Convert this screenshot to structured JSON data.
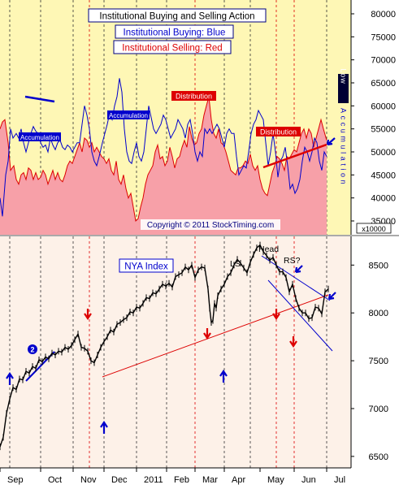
{
  "chart_data": [
    {
      "type": "area",
      "panel": "upper",
      "title_lines": [
        {
          "text": "Institutional Buying and Selling Action",
          "color": "#000000"
        },
        {
          "text": "Institutional Buying: Blue",
          "color": "#0000cc"
        },
        {
          "text": "Institutional Selling: Red",
          "color": "#dd0000"
        }
      ],
      "ylim": [
        32000,
        83000
      ],
      "yticks": [
        35000,
        40000,
        45000,
        50000,
        55000,
        60000,
        65000,
        70000,
        75000,
        80000
      ],
      "ytick_labels": [
        "35000",
        "40000",
        "45000",
        "50000",
        "55000",
        "60000",
        "65000",
        "70000",
        "75000",
        "80000"
      ],
      "multiplier_label": "x10000",
      "series": [
        {
          "name": "Institutional Buying",
          "color": "#0000cc",
          "x": [
            0,
            3,
            7,
            10,
            13,
            16,
            20,
            23,
            26,
            29,
            32,
            35,
            38,
            41,
            44,
            47,
            50,
            53,
            56,
            59,
            62,
            65,
            68,
            71,
            74,
            77,
            80,
            83,
            86,
            89,
            92,
            95,
            98,
            101,
            104,
            107,
            110,
            113,
            116,
            119,
            122,
            126,
            129,
            132,
            135,
            138,
            141,
            144,
            147,
            150,
            153,
            156,
            159,
            162,
            165,
            168,
            171,
            174,
            177,
            180,
            183,
            186,
            189,
            192,
            195,
            198,
            201,
            204,
            207,
            210,
            213,
            216,
            219,
            222,
            225,
            228,
            231,
            234,
            237,
            240,
            243,
            246,
            249,
            252,
            255,
            258,
            261,
            264,
            267,
            270,
            273,
            276,
            279,
            282,
            285,
            288,
            291,
            294,
            297,
            300,
            303,
            306,
            309,
            312,
            315,
            318,
            321,
            324,
            327,
            330,
            333,
            336,
            339,
            342,
            345,
            348,
            351,
            354,
            357,
            360,
            363,
            366,
            369,
            372,
            375,
            378,
            381,
            384,
            387,
            390,
            393,
            396,
            399,
            402
          ],
          "values": [
            40000,
            36000,
            45000,
            48000,
            55000,
            53000,
            54000,
            53000,
            55000,
            52000,
            50000,
            52000,
            54000,
            55500,
            54500,
            54000,
            52000,
            51000,
            51500,
            50000,
            53000,
            51500,
            50500,
            52000,
            52500,
            51000,
            50500,
            51500,
            51000,
            50000,
            51000,
            52000,
            52000,
            56000,
            60000,
            58000,
            55000,
            50000,
            48000,
            47000,
            49000,
            52000,
            54000,
            56000,
            58500,
            57000,
            60000,
            62000,
            66000,
            63000,
            55000,
            50000,
            48000,
            47500,
            50000,
            52000,
            49000,
            48000,
            50000,
            55000,
            60000,
            57500,
            55000,
            54000,
            55000,
            56000,
            58000,
            57000,
            55000,
            53000,
            54000,
            55000,
            57000,
            56000,
            55000,
            53000,
            56000,
            57000,
            54000,
            50000,
            48000,
            50000,
            49000,
            55000,
            54000,
            55000,
            54000,
            55000,
            56000,
            55000,
            53000,
            51000,
            54000,
            55000,
            54000,
            54000,
            49000,
            45000,
            46000,
            47000,
            46500,
            50000,
            54000,
            56000,
            57000,
            59000,
            58000,
            57000,
            52000,
            47000,
            50000,
            54000,
            50000,
            44500,
            48000,
            49000,
            51000,
            47000,
            42000,
            43000,
            41000,
            42000,
            44000,
            48000,
            51000,
            50000,
            48000,
            50000,
            53000,
            52000,
            48000,
            46000,
            50000,
            49000
          ]
        },
        {
          "name": "Institutional Selling",
          "color": "#dd0000",
          "x": [
            0,
            3,
            6,
            10,
            13,
            17,
            20,
            23,
            26,
            29,
            32,
            35,
            38,
            41,
            44,
            47,
            50,
            53,
            56,
            59,
            62,
            65,
            68,
            71,
            74,
            77,
            80,
            83,
            86,
            89,
            92,
            95,
            98,
            101,
            104,
            107,
            110,
            113,
            116,
            119,
            122,
            125,
            128,
            131,
            134,
            137,
            140,
            143,
            146,
            149,
            152,
            155,
            158,
            161,
            164,
            167,
            170,
            173,
            176,
            179,
            182,
            185,
            188,
            191,
            194,
            197,
            200,
            203,
            206,
            209,
            212,
            215,
            218,
            221,
            224,
            227,
            230,
            233,
            236,
            239,
            242,
            245,
            248,
            251,
            254,
            257,
            260,
            263,
            266,
            269,
            272,
            275,
            278,
            281,
            284,
            287,
            290,
            293,
            296,
            299,
            302,
            305,
            308,
            311,
            314,
            317,
            320,
            323,
            326,
            329,
            332,
            335,
            338,
            341,
            344,
            347,
            350,
            353,
            356,
            359,
            362,
            365,
            368,
            371,
            374,
            377,
            380,
            383,
            386,
            389,
            392,
            395,
            398,
            402
          ],
          "values": [
            55000,
            56500,
            57000,
            52000,
            46000,
            47000,
            44000,
            43000,
            45000,
            45500,
            44000,
            46500,
            46000,
            44000,
            45500,
            44000,
            44500,
            46000,
            45000,
            43000,
            44500,
            46000,
            44000,
            45500,
            44000,
            43500,
            45000,
            47000,
            48000,
            47500,
            49000,
            50500,
            52000,
            50000,
            53000,
            52500,
            51000,
            52000,
            50000,
            51000,
            50000,
            49000,
            48500,
            47500,
            48500,
            46000,
            45000,
            48000,
            44000,
            43000,
            45000,
            42000,
            40000,
            41000,
            38000,
            35000,
            35500,
            38000,
            40000,
            43000,
            45000,
            46000,
            47000,
            50000,
            51500,
            48500,
            49000,
            47000,
            48000,
            51000,
            49000,
            46500,
            48500,
            49000,
            51000,
            52500,
            51000,
            55500,
            53000,
            51500,
            52000,
            54000,
            55000,
            58000,
            60000,
            62000,
            57000,
            54000,
            53000,
            55000,
            52000,
            51500,
            50000,
            48000,
            46000,
            45500,
            45000,
            46500,
            46500,
            47000,
            48000,
            47500,
            49500,
            47000,
            46000,
            47000,
            44000,
            42000,
            41000,
            40500,
            43000,
            45500,
            47000,
            49000,
            48500,
            47500,
            46000,
            49000,
            48500,
            49500,
            50500,
            50000,
            52000,
            54000,
            55000,
            53000,
            55000,
            54000,
            51000,
            53000,
            55000,
            57000,
            55000,
            52500
          ]
        }
      ],
      "annotations": [
        {
          "text": "Accumulation",
          "style": "blue-box"
        },
        {
          "text": "Accumulation",
          "style": "blue-box"
        },
        {
          "text": "Distribution",
          "style": "red-box"
        },
        {
          "text": "Distribution",
          "style": "red-box"
        },
        {
          "text": "Low",
          "style": "vertical-dark"
        },
        {
          "text": "Accumulation",
          "style": "vertical-blue"
        }
      ],
      "copyright": "Copyright © 2011 StockTiming.com"
    },
    {
      "type": "line",
      "panel": "lower",
      "title": "NYA Index",
      "ylim": [
        6380,
        8800
      ],
      "yticks": [
        6500,
        7000,
        7500,
        8000,
        8500
      ],
      "ytick_labels": [
        "6500",
        "7000",
        "7500",
        "8000",
        "8500"
      ],
      "xtick_labels": [
        "Sep",
        "Oct",
        "Nov",
        "Dec",
        "2011",
        "Feb",
        "Mar",
        "Apr",
        "May",
        "Jun",
        "Jul"
      ],
      "series": [
        {
          "name": "NYA Index",
          "color": "#000000",
          "x": [
            0,
            4,
            8,
            12,
            16,
            20,
            24,
            28,
            32,
            36,
            40,
            44,
            48,
            52,
            56,
            60,
            64,
            68,
            72,
            76,
            80,
            84,
            88,
            92,
            96,
            100,
            104,
            108,
            112,
            116,
            120,
            124,
            128,
            132,
            136,
            140,
            144,
            148,
            152,
            156,
            160,
            164,
            168,
            172,
            176,
            180,
            184,
            188,
            192,
            196,
            200,
            204,
            208,
            212,
            216,
            220,
            224,
            228,
            232,
            236,
            240,
            244,
            248,
            252,
            256,
            258,
            260,
            262,
            264,
            266,
            268,
            272,
            276,
            280,
            284,
            288,
            292,
            296,
            300,
            304,
            308,
            312,
            316,
            320,
            324,
            328,
            332,
            336,
            340,
            344,
            348,
            352,
            356,
            360,
            364,
            368,
            372,
            376,
            380,
            384,
            388,
            392,
            396,
            400,
            404
          ],
          "values": [
            6600,
            6700,
            6950,
            7100,
            7220,
            7200,
            7310,
            7300,
            7390,
            7370,
            7440,
            7420,
            7510,
            7490,
            7540,
            7520,
            7580,
            7560,
            7600,
            7590,
            7640,
            7620,
            7660,
            7720,
            7780,
            7640,
            7630,
            7600,
            7500,
            7480,
            7560,
            7640,
            7700,
            7750,
            7820,
            7800,
            7880,
            7900,
            7930,
            7950,
            8010,
            8000,
            8060,
            8050,
            8100,
            8160,
            8150,
            8210,
            8200,
            8250,
            8300,
            8280,
            8310,
            8270,
            8380,
            8400,
            8420,
            8480,
            8450,
            8500,
            8370,
            8450,
            8480,
            8470,
            8250,
            8050,
            7900,
            7920,
            8100,
            8050,
            8180,
            8250,
            8300,
            8380,
            8420,
            8500,
            8560,
            8520,
            8470,
            8420,
            8530,
            8610,
            8680,
            8710,
            8640,
            8600,
            8550,
            8580,
            8500,
            8430,
            8430,
            8370,
            8220,
            8300,
            8150,
            8050,
            8000,
            8000,
            7940,
            7950,
            8060,
            8050,
            7990,
            8220,
            8250
          ]
        }
      ],
      "annotations": [
        {
          "text": "Head",
          "style": "plain"
        },
        {
          "text": "LS",
          "style": "plain"
        },
        {
          "text": "RS?",
          "style": "plain"
        },
        {
          "text": "2",
          "style": "blue-circle"
        }
      ]
    }
  ]
}
